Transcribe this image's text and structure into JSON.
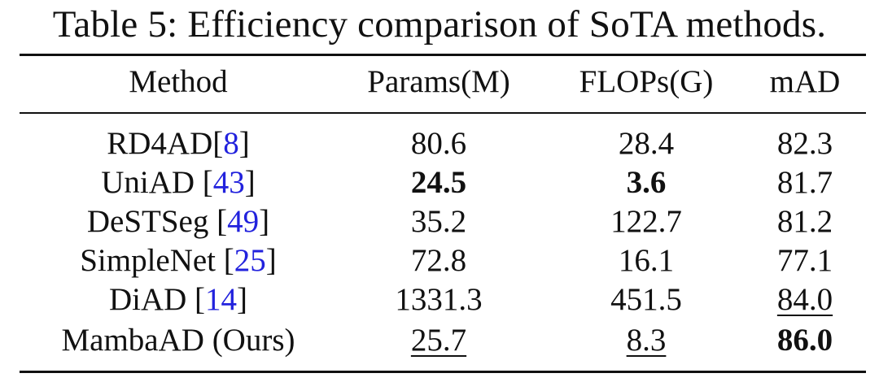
{
  "caption": "Table 5: Efficiency comparison of SoTA methods.",
  "columns": {
    "method": "Method",
    "params": "Params(M)",
    "flops": "FLOPs(G)",
    "mad": "mAD"
  },
  "rows": [
    {
      "method": "RD4AD",
      "sep": "",
      "cite": "8",
      "params": "80.6",
      "flops": "28.4",
      "mad": "82.3"
    },
    {
      "method": "UniAD",
      "sep": " ",
      "cite": "43",
      "params": "24.5",
      "flops": "3.6",
      "mad": "81.7"
    },
    {
      "method": "DeSTSeg",
      "sep": " ",
      "cite": "49",
      "params": "35.2",
      "flops": "122.7",
      "mad": "81.2"
    },
    {
      "method": "SimpleNet",
      "sep": " ",
      "cite": "25",
      "params": "72.8",
      "flops": "16.1",
      "mad": "77.1"
    },
    {
      "method": "DiAD",
      "sep": " ",
      "cite": "14",
      "params": "1331.3",
      "flops": "451.5",
      "mad": "84.0"
    },
    {
      "method": "MambaAD (Ours)",
      "sep": "",
      "cite": "",
      "params": "25.7",
      "flops": "8.3",
      "mad": "86.0"
    }
  ],
  "formatting": {
    "bold": [
      "rows.1.params",
      "rows.1.flops",
      "rows.5.mad"
    ],
    "underline": [
      "rows.5.params",
      "rows.5.flops",
      "rows.4.mad"
    ]
  }
}
